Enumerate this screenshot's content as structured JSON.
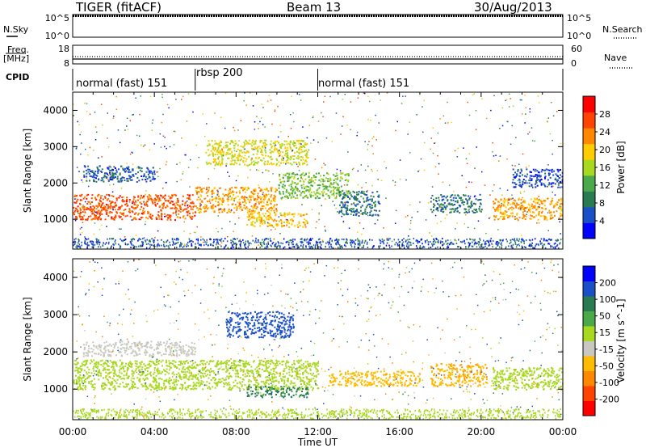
{
  "header": {
    "station": "TIGER (fitACF)",
    "beam": "Beam 13",
    "date": "30/Aug/2013"
  },
  "nsky": {
    "left_label": "N.Sky",
    "right_label": "N.Search",
    "left_ticks": [
      "10^5",
      "10^0"
    ],
    "right_ticks": [
      "10^5",
      "10^0"
    ]
  },
  "freq": {
    "label_line1": "Freq.",
    "label_line2": "[MHz]",
    "left_ticks": [
      "18",
      "8"
    ],
    "right_ticks": [
      "60",
      "0"
    ],
    "right_label": "Nave"
  },
  "cpid": {
    "label": "CPID",
    "segments": [
      {
        "name": "normal (fast) 151",
        "start_h": 0,
        "end_h": 6
      },
      {
        "name": "rbsp 200",
        "start_h": 6,
        "end_h": 12
      },
      {
        "name": "normal (fast) 151",
        "start_h": 12,
        "end_h": 24
      }
    ]
  },
  "colors": {
    "power_scale": [
      "#0000ff",
      "#1a4fc8",
      "#2a7a52",
      "#4aaa4a",
      "#a8d820",
      "#ffcc00",
      "#ff8800",
      "#ff4400",
      "#ff0000"
    ],
    "velocity_scale": [
      "#ff0000",
      "#ff4400",
      "#ff8800",
      "#ffbb00",
      "#c8c8c0",
      "#a8d820",
      "#4aaa4a",
      "#2a7a52",
      "#1a4fc8",
      "#0000ff"
    ]
  },
  "chart_data": [
    {
      "type": "heatmap",
      "title": "Power",
      "xlabel": "",
      "ylabel": "Slant Range [km]",
      "xlim": [
        0,
        24
      ],
      "ylim": [
        180,
        4500
      ],
      "yticks": [
        1000,
        2000,
        3000,
        4000
      ],
      "colorbar": {
        "label": "Power [dB]",
        "ticks": [
          4,
          8,
          12,
          16,
          20,
          24,
          28
        ],
        "range": [
          0,
          32
        ],
        "tick_labels": [
          "4",
          "8",
          "12",
          "16",
          "20",
          "24",
          "28"
        ]
      },
      "features": [
        {
          "t0": 0,
          "t1": 6,
          "r0": 1000,
          "r1": 1700,
          "value": 26
        },
        {
          "t0": 6,
          "t1": 10,
          "r0": 1200,
          "r1": 1900,
          "value": 22
        },
        {
          "t0": 10,
          "t1": 13.5,
          "r0": 1600,
          "r1": 2300,
          "value": 14
        },
        {
          "t0": 20.5,
          "t1": 24,
          "r0": 1000,
          "r1": 1600,
          "value": 22
        },
        {
          "t0": 0.5,
          "t1": 4,
          "r0": 2050,
          "r1": 2500,
          "value": 6
        },
        {
          "t0": 6.5,
          "t1": 11.5,
          "r0": 2500,
          "r1": 3200,
          "value": 18
        },
        {
          "t0": 8.5,
          "t1": 11.5,
          "r0": 800,
          "r1": 1200,
          "value": 20
        },
        {
          "t0": 13,
          "t1": 15,
          "r0": 1100,
          "r1": 1800,
          "value": 8
        },
        {
          "t0": 17.5,
          "t1": 20,
          "r0": 1200,
          "r1": 1700,
          "value": 8
        },
        {
          "t0": 21.5,
          "t1": 24,
          "r0": 1900,
          "r1": 2400,
          "value": 5
        }
      ]
    },
    {
      "type": "heatmap",
      "title": "Velocity",
      "xlabel": "Time UT",
      "ylabel": "Slant Range [km]",
      "xlim": [
        0,
        24
      ],
      "ylim": [
        180,
        4500
      ],
      "xticks": [
        "00:00",
        "04:00",
        "08:00",
        "12:00",
        "16:00",
        "20:00",
        "00:00"
      ],
      "yticks": [
        1000,
        2000,
        3000,
        4000
      ],
      "colorbar": {
        "label": "Velocity [m s^-1]",
        "ticks": [
          -200,
          -100,
          -50,
          -15,
          15,
          50,
          100,
          200
        ],
        "tick_labels": [
          "-200",
          "-100",
          "-50",
          "-15",
          "15",
          "50",
          "100",
          "200"
        ]
      },
      "features": [
        {
          "t0": 0,
          "t1": 12,
          "r0": 1000,
          "r1": 1800,
          "value": 0
        },
        {
          "t0": 20.5,
          "t1": 24,
          "r0": 1000,
          "r1": 1600,
          "value": 0
        },
        {
          "t0": 7.5,
          "t1": 10.8,
          "r0": 2400,
          "r1": 3100,
          "value": 150
        },
        {
          "t0": 8.5,
          "t1": 11.5,
          "r0": 800,
          "r1": 1100,
          "value": 60
        },
        {
          "t0": 12.5,
          "t1": 17,
          "r0": 1100,
          "r1": 1500,
          "value": -70
        },
        {
          "t0": 17.5,
          "t1": 20.3,
          "r0": 1100,
          "r1": 1700,
          "value": -90
        },
        {
          "t0": 0.5,
          "t1": 6,
          "r0": 1900,
          "r1": 2300,
          "value": -35
        }
      ]
    }
  ]
}
